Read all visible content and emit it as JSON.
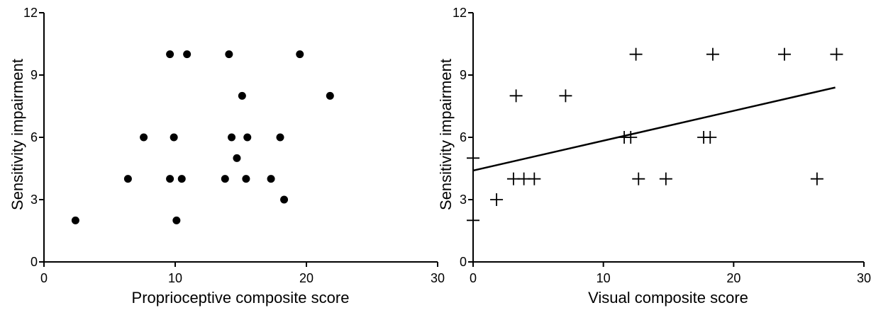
{
  "chart_data": [
    {
      "type": "scatter",
      "xlabel": "Proprioceptive composite score",
      "ylabel": "Sensitivity impairment",
      "xlim": [
        0,
        30
      ],
      "ylim": [
        0,
        12
      ],
      "x_ticks": [
        0,
        10,
        20,
        30
      ],
      "y_ticks": [
        0,
        3,
        6,
        9,
        12
      ],
      "x_tick_labels": [
        "0",
        "10",
        "20",
        "30"
      ],
      "y_tick_labels": [
        "0",
        "3",
        "6",
        "9",
        "12"
      ],
      "marker": "filled-circle",
      "grid": false,
      "points": [
        {
          "x": 9.6,
          "y": 10
        },
        {
          "x": 10.9,
          "y": 10
        },
        {
          "x": 14.1,
          "y": 10
        },
        {
          "x": 19.5,
          "y": 10
        },
        {
          "x": 15.1,
          "y": 8
        },
        {
          "x": 21.8,
          "y": 8
        },
        {
          "x": 7.6,
          "y": 6
        },
        {
          "x": 9.9,
          "y": 6
        },
        {
          "x": 14.3,
          "y": 6
        },
        {
          "x": 15.5,
          "y": 6
        },
        {
          "x": 18.0,
          "y": 6
        },
        {
          "x": 14.7,
          "y": 5
        },
        {
          "x": 6.4,
          "y": 4
        },
        {
          "x": 9.6,
          "y": 4
        },
        {
          "x": 10.5,
          "y": 4
        },
        {
          "x": 13.8,
          "y": 4
        },
        {
          "x": 15.4,
          "y": 4
        },
        {
          "x": 17.3,
          "y": 4
        },
        {
          "x": 18.3,
          "y": 3
        },
        {
          "x": 2.4,
          "y": 2
        },
        {
          "x": 10.1,
          "y": 2
        }
      ]
    },
    {
      "type": "scatter",
      "xlabel": "Visual composite score",
      "ylabel": "Sensitivity impairment",
      "xlim": [
        0,
        30
      ],
      "ylim": [
        0,
        12
      ],
      "x_ticks": [
        0,
        10,
        20,
        30
      ],
      "y_ticks": [
        0,
        3,
        6,
        9,
        12
      ],
      "x_tick_labels": [
        "0",
        "10",
        "20",
        "30"
      ],
      "y_tick_labels": [
        "0",
        "3",
        "6",
        "9",
        "12"
      ],
      "marker": "plus",
      "grid": false,
      "points": [
        {
          "x": 12.5,
          "y": 10
        },
        {
          "x": 18.4,
          "y": 10
        },
        {
          "x": 23.9,
          "y": 10
        },
        {
          "x": 27.9,
          "y": 10
        },
        {
          "x": 3.3,
          "y": 8
        },
        {
          "x": 7.1,
          "y": 8
        },
        {
          "x": 11.6,
          "y": 6
        },
        {
          "x": 12.1,
          "y": 6
        },
        {
          "x": 17.7,
          "y": 6
        },
        {
          "x": 18.2,
          "y": 6
        },
        {
          "x": 0.0,
          "y": 5
        },
        {
          "x": 3.1,
          "y": 4
        },
        {
          "x": 3.9,
          "y": 4
        },
        {
          "x": 4.7,
          "y": 4
        },
        {
          "x": 12.7,
          "y": 4
        },
        {
          "x": 14.8,
          "y": 4
        },
        {
          "x": 26.4,
          "y": 4
        },
        {
          "x": 1.8,
          "y": 3
        },
        {
          "x": 0.0,
          "y": 2
        }
      ],
      "fit_line": {
        "x": [
          0,
          27.8
        ],
        "y": [
          4.4,
          8.4
        ]
      }
    }
  ]
}
